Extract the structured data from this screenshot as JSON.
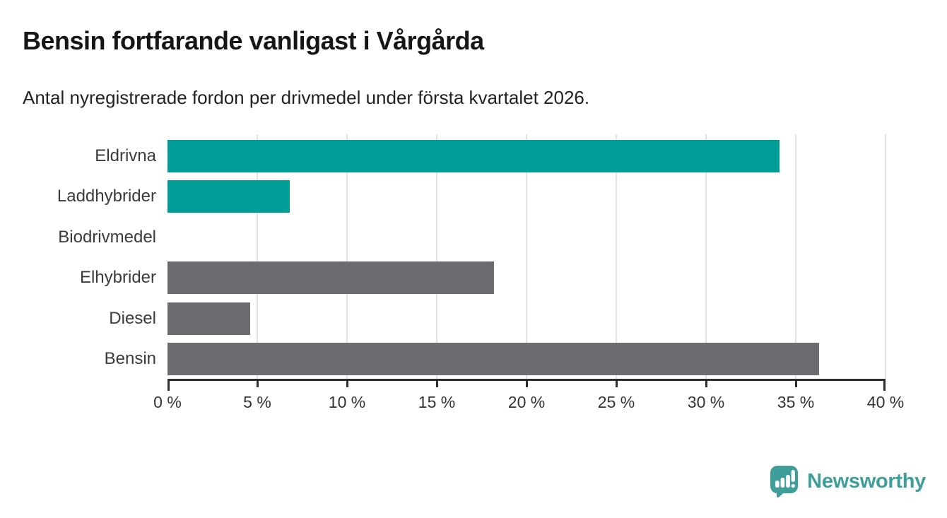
{
  "header": {
    "title": "Bensin fortfarande vanligast i Vårgårda",
    "subtitle": "Antal nyregistrerade fordon per drivmedel under första kvartalet 2026."
  },
  "colors": {
    "bar_teal": "#009e97",
    "bar_gray": "#6b6b72",
    "grid": "#e2e2e2",
    "axis": "#2d2d2d",
    "title_text": "#161616",
    "label_text": "#3a3a3a",
    "brand_teal": "#3f9e99"
  },
  "chart_data": {
    "type": "bar",
    "orientation": "horizontal",
    "title": "Bensin fortfarande vanligast i Vårgårda",
    "subtitle": "Antal nyregistrerade fordon per drivmedel under första kvartalet 2026.",
    "categories": [
      "Eldrivna",
      "Laddhybrider",
      "Biodrivmedel",
      "Elhybrider",
      "Diesel",
      "Bensin"
    ],
    "values": [
      34.1,
      6.8,
      0,
      18.2,
      4.6,
      36.3
    ],
    "unit": "%",
    "bar_colors": [
      "#009e97",
      "#009e97",
      "#009e97",
      "#6b6b72",
      "#6b6b72",
      "#6b6b72"
    ],
    "xlabel": "",
    "ylabel": "",
    "xlim": [
      0,
      40
    ],
    "x_ticks": [
      0,
      5,
      10,
      15,
      20,
      25,
      30,
      35,
      40
    ],
    "x_tick_labels": [
      "0 %",
      "5 %",
      "10 %",
      "15 %",
      "20 %",
      "25 %",
      "30 %",
      "35 %",
      "40 %"
    ],
    "grid": "vertical-only",
    "legend": "none"
  },
  "footer": {
    "brand": "Newsworthy",
    "logo_icon": "bar-chart-speech-bubble-icon"
  }
}
